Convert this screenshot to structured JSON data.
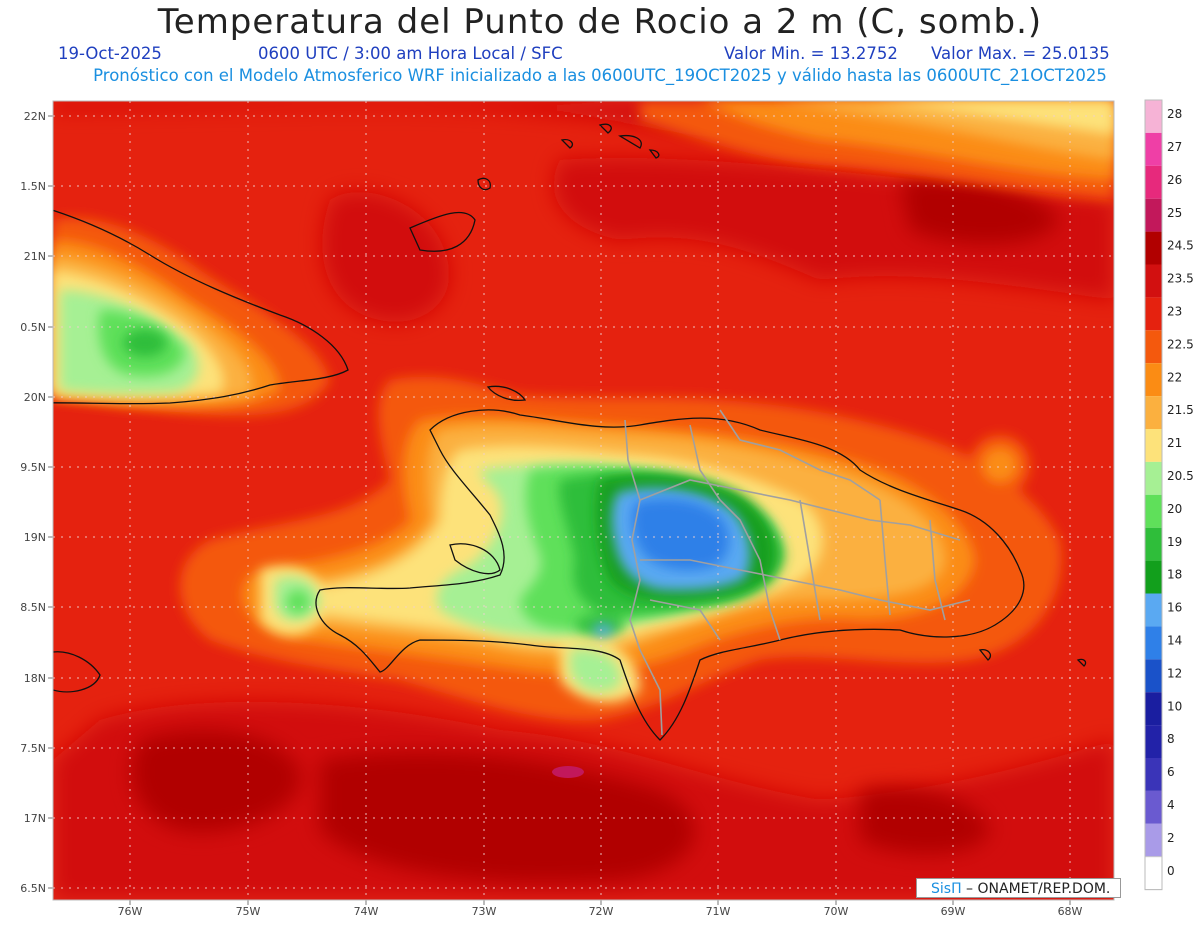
{
  "header": {
    "title": "Temperatura del Punto de Rocio a 2 m (C, somb.)",
    "date": "19-Oct-2025",
    "time": "0600 UTC / 3:00 am Hora Local / SFC",
    "min_label": "Valor Min. = 13.2752",
    "max_label": "Valor Max. = 25.0135",
    "model_info": "Pronóstico con el Modelo Atmosferico WRF inicializado a las 0600UTC_19OCT2025 y válido hasta las  0600UTC_21OCT2025"
  },
  "map": {
    "lon_ticks": [
      "76W",
      "75W",
      "74W",
      "73W",
      "72W",
      "71W",
      "70W",
      "69W",
      "68W"
    ],
    "lat_ticks": [
      "22N",
      "1.5N",
      "21N",
      "0.5N",
      "20N",
      "9.5N",
      "19N",
      "8.5N",
      "18N",
      "7.5N",
      "17N",
      "6.5N"
    ]
  },
  "legend": {
    "labels": [
      "28",
      "27",
      "26",
      "25",
      "24.5",
      "23.5",
      "23",
      "22.5",
      "22",
      "21.5",
      "21",
      "20.5",
      "20",
      "19",
      "18",
      "16",
      "14",
      "12",
      "10",
      "8",
      "6",
      "4",
      "2",
      "0"
    ],
    "colors": [
      "#f6b3d6",
      "#ef3fa6",
      "#e7297c",
      "#c2185b",
      "#b10000",
      "#d21010",
      "#e5220f",
      "#f4590d",
      "#fb8c14",
      "#fbb03f",
      "#fde27a",
      "#a6f094",
      "#5fe05a",
      "#2fbe3a",
      "#129f1c",
      "#5aa9f2",
      "#2f80e8",
      "#1a52c9",
      "#1a1ea0",
      "#2222a8",
      "#3a34b8",
      "#6a5ad0",
      "#a99be8",
      "#d9d8f4"
    ]
  },
  "credit": {
    "brand": "SisΠ",
    "text": " – ONAMET/REP.DOM."
  }
}
